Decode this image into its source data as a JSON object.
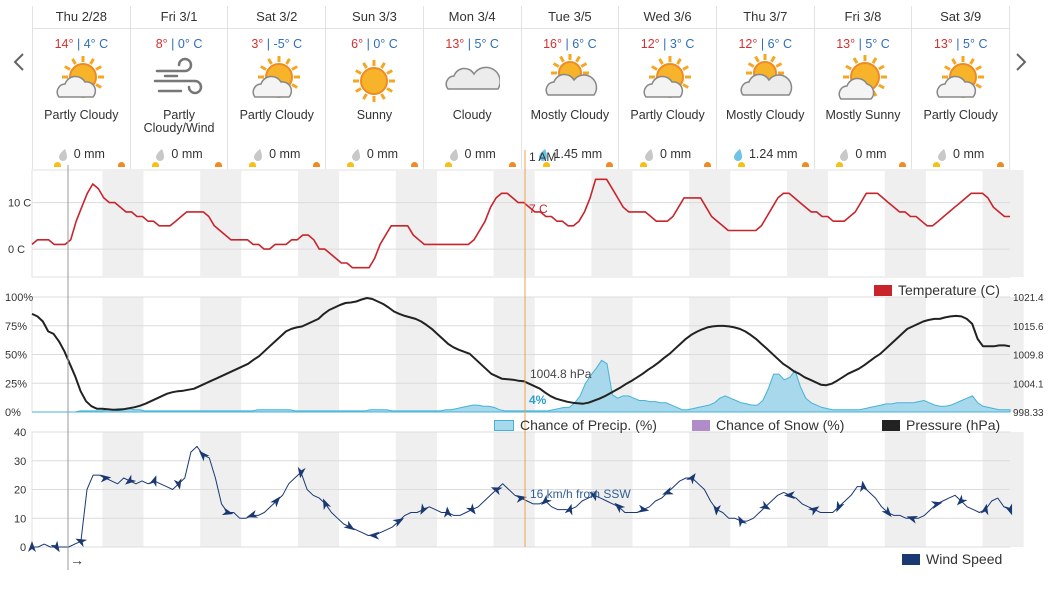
{
  "nav": {
    "prev_label": "‹",
    "next_label": "›"
  },
  "days": [
    {
      "name": "Thu 2/28",
      "hi": "14°",
      "lo": "4° C",
      "icon": "partly-cloudy-icon",
      "condition": "Partly Cloudy",
      "precip": "0 mm",
      "drop": "gray"
    },
    {
      "name": "Fri 3/1",
      "hi": "8°",
      "lo": "0° C",
      "icon": "wind-icon",
      "condition": "Partly Cloudy/Wind",
      "precip": "0 mm",
      "drop": "gray"
    },
    {
      "name": "Sat 3/2",
      "hi": "3°",
      "lo": "-5° C",
      "icon": "partly-cloudy-icon",
      "condition": "Partly Cloudy",
      "precip": "0 mm",
      "drop": "gray"
    },
    {
      "name": "Sun 3/3",
      "hi": "6°",
      "lo": "0° C",
      "icon": "sunny-icon",
      "condition": "Sunny",
      "precip": "0 mm",
      "drop": "gray"
    },
    {
      "name": "Mon 3/4",
      "hi": "13°",
      "lo": "5° C",
      "icon": "cloudy-icon",
      "condition": "Cloudy",
      "precip": "0 mm",
      "drop": "gray"
    },
    {
      "name": "Tue 3/5",
      "hi": "16°",
      "lo": "6° C",
      "icon": "mostly-cloudy-icon",
      "condition": "Mostly Cloudy",
      "precip": "1.45 mm",
      "drop": "blue"
    },
    {
      "name": "Wed 3/6",
      "hi": "12°",
      "lo": "3° C",
      "icon": "partly-cloudy-icon",
      "condition": "Partly Cloudy",
      "precip": "0 mm",
      "drop": "gray"
    },
    {
      "name": "Thu 3/7",
      "hi": "12°",
      "lo": "6° C",
      "icon": "mostly-cloudy-icon",
      "condition": "Mostly Cloudy",
      "precip": "1.24 mm",
      "drop": "blue"
    },
    {
      "name": "Fri 3/8",
      "hi": "13°",
      "lo": "5° C",
      "icon": "mostly-sunny-icon",
      "condition": "Mostly Sunny",
      "precip": "0 mm",
      "drop": "gray"
    },
    {
      "name": "Sat 3/9",
      "hi": "13°",
      "lo": "5° C",
      "icon": "partly-cloudy-icon",
      "condition": "Partly Cloudy",
      "precip": "0 mm",
      "drop": "gray"
    }
  ],
  "colors": {
    "temperature": "#c8242c",
    "precip_fill": "#a8d8ec",
    "precip_line": "#45b3d8",
    "snow": "#b08cc8",
    "pressure": "#222222",
    "wind": "#1a3872",
    "cursor": "#f0a050",
    "night": "#efefef"
  },
  "cursor": {
    "time_label": "1 AM",
    "temp_label": "7 C",
    "pressure_label": "1004.8 hPa",
    "precip_label": "4%",
    "wind_label": "16 km/h from SSW"
  },
  "legends": {
    "temperature": "Temperature (C)",
    "precip": "Chance of Precip. (%)",
    "snow": "Chance of Snow (%)",
    "pressure": "Pressure (hPa)",
    "wind": "Wind Speed"
  },
  "wind_arrow_label": "→",
  "chart_data": [
    {
      "type": "line",
      "name": "temperature",
      "yticks": [
        "10 C",
        "0 C"
      ],
      "ylim": [
        -6,
        17
      ],
      "y": [
        1,
        2,
        2,
        2,
        1,
        1,
        1,
        2,
        6,
        9,
        12,
        14,
        13,
        11,
        10,
        10,
        9,
        8,
        8,
        7,
        7,
        6,
        6,
        5,
        5,
        5,
        6,
        7,
        8,
        8,
        8,
        8,
        7,
        5,
        4,
        3,
        2,
        2,
        2,
        2,
        1,
        1,
        0,
        0,
        1,
        1,
        1,
        2,
        2,
        3,
        3,
        2,
        0,
        0,
        -1,
        -2,
        -3,
        -3,
        -4,
        -4,
        -4,
        -4,
        -2,
        1,
        3,
        5,
        5,
        5,
        5,
        3,
        2,
        1,
        1,
        1,
        1,
        1,
        1,
        1,
        1,
        1,
        2,
        4,
        6,
        9,
        11,
        12,
        12,
        11,
        10,
        10,
        9,
        8,
        8,
        7,
        7,
        6,
        6,
        5,
        5,
        6,
        8,
        11,
        15,
        15,
        15,
        13,
        11,
        9,
        8,
        8,
        8,
        8,
        7,
        6,
        6,
        6,
        7,
        9,
        11,
        11,
        11,
        11,
        9,
        7,
        6,
        5,
        4,
        4,
        4,
        4,
        4,
        4,
        5,
        7,
        9,
        11,
        12,
        12,
        11,
        10,
        9,
        8,
        8,
        7,
        7,
        6,
        6,
        6,
        7,
        8,
        10,
        12,
        12,
        12,
        11,
        10,
        9,
        8,
        8,
        7,
        7,
        6,
        5,
        5,
        6,
        7,
        8,
        9,
        10,
        11,
        12,
        12,
        12,
        11,
        9,
        8,
        7,
        7
      ]
    },
    {
      "type": "area",
      "name": "chance_of_precip",
      "yticks": [
        "100%",
        "75%",
        "50%",
        "25%",
        "0%"
      ],
      "ylim": [
        0,
        100
      ],
      "y": [
        0,
        0,
        0,
        0,
        0,
        0,
        0,
        0,
        0,
        1,
        1,
        1,
        1,
        1,
        2,
        2,
        3,
        3,
        3,
        2,
        2,
        1,
        1,
        1,
        1,
        1,
        1,
        1,
        1,
        1,
        1,
        1,
        1,
        1,
        1,
        1,
        1,
        1,
        1,
        1,
        1,
        1,
        2,
        2,
        2,
        2,
        2,
        2,
        2,
        1,
        1,
        1,
        1,
        1,
        1,
        1,
        1,
        1,
        1,
        1,
        1,
        1,
        1,
        2,
        2,
        2,
        2,
        1,
        1,
        1,
        1,
        1,
        1,
        1,
        1,
        1,
        1,
        2,
        2,
        3,
        4,
        5,
        6,
        6,
        5,
        5,
        4,
        2,
        1,
        1,
        1,
        1,
        1,
        1,
        1,
        1,
        1,
        2,
        3,
        4,
        4,
        8,
        14,
        25,
        32,
        38,
        45,
        42,
        15,
        12,
        14,
        14,
        12,
        10,
        10,
        9,
        9,
        8,
        8,
        6,
        4,
        2,
        2,
        3,
        4,
        5,
        6,
        8,
        12,
        14,
        12,
        10,
        8,
        7,
        6,
        6,
        10,
        20,
        33,
        33,
        28,
        30,
        36,
        22,
        12,
        8,
        6,
        4,
        3,
        2,
        2,
        2,
        2,
        2,
        2,
        3,
        4,
        5,
        6,
        7,
        7,
        8,
        8,
        8,
        8,
        9,
        10,
        8,
        6,
        5,
        5,
        6,
        8,
        10,
        12,
        14,
        8,
        5,
        4,
        3,
        2,
        2,
        2
      ]
    },
    {
      "type": "line",
      "name": "pressure",
      "yticks": [
        "1021.4",
        "1015.6",
        "1009.8",
        "1004.1",
        "998.33"
      ],
      "ylim": [
        998.33,
        1021.4
      ],
      "y": [
        1018,
        1017.5,
        1016.5,
        1014.5,
        1014,
        1012.5,
        1010.5,
        1008,
        1005.5,
        1002.5,
        1000.5,
        999.5,
        999,
        999,
        998.9,
        998.8,
        998.8,
        998.9,
        999.1,
        999.3,
        999.6,
        1000,
        1000.5,
        1001,
        1001.5,
        1002,
        1002.3,
        1002.5,
        1002.6,
        1002.8,
        1003,
        1003.5,
        1004,
        1004.5,
        1005,
        1005.5,
        1006,
        1006.5,
        1007,
        1007.5,
        1008,
        1008.8,
        1009.5,
        1010.5,
        1011.5,
        1012.5,
        1013.5,
        1014.5,
        1015,
        1015.3,
        1015.5,
        1016,
        1016.5,
        1017,
        1018,
        1018.8,
        1019.3,
        1019.8,
        1020.2,
        1020.3,
        1020.5,
        1020.9,
        1021.2,
        1021,
        1020.5,
        1020,
        1019.3,
        1018.5,
        1018,
        1017.6,
        1017.3,
        1017,
        1016.5,
        1015.8,
        1015,
        1014,
        1013,
        1012,
        1011.3,
        1010.8,
        1010.4,
        1010,
        1009,
        1008,
        1007,
        1006,
        1005.5,
        1005,
        1004.9,
        1004.8,
        1004.6,
        1004.5,
        1004,
        1003.5,
        1003,
        1002.2,
        1001.5,
        1001,
        1000.7,
        1000.4,
        1000.2,
        1000.1,
        1000,
        1000.2,
        1000.6,
        1001,
        1001.5,
        1002.1,
        1002.7,
        1003.3,
        1004,
        1004.6,
        1005.3,
        1006,
        1006.8,
        1007.5,
        1008.3,
        1009.2,
        1010,
        1011,
        1012,
        1013,
        1013.8,
        1014.4,
        1014.9,
        1015.3,
        1015.5,
        1015.6,
        1015.6,
        1015.5,
        1015.3,
        1015,
        1014.5,
        1013.8,
        1013,
        1012,
        1011,
        1010,
        1009,
        1008,
        1007.3,
        1006.5,
        1006,
        1005.3,
        1004.8,
        1004.3,
        1003.8,
        1003.7,
        1004,
        1004.6,
        1005.3,
        1006,
        1006.5,
        1007,
        1007.7,
        1008.5,
        1009.3,
        1010,
        1011,
        1012,
        1013,
        1014,
        1015,
        1015.5,
        1016,
        1016.5,
        1016.8,
        1017,
        1017,
        1017.3,
        1017.5,
        1017.6,
        1017.5,
        1017,
        1016,
        1013,
        1011.5,
        1011.5,
        1011.5,
        1011.7,
        1011.7,
        1011.5
      ]
    },
    {
      "type": "line",
      "name": "wind_speed",
      "yticks": [
        "40",
        "30",
        "20",
        "10",
        "0"
      ],
      "ylim": [
        0,
        40
      ],
      "y": [
        0,
        0,
        1,
        0,
        0,
        0,
        0,
        1,
        2,
        20,
        25,
        25,
        24,
        23,
        22,
        24,
        23,
        22,
        23,
        22,
        23,
        22,
        21,
        20,
        22,
        24,
        33,
        35,
        32,
        31,
        24,
        15,
        12,
        12,
        10,
        10,
        11,
        11,
        12,
        14,
        16,
        18,
        22,
        24,
        26,
        20,
        18,
        17,
        15,
        12,
        10,
        8,
        7,
        6,
        5,
        4,
        4,
        5,
        6,
        7,
        9,
        11,
        12,
        12,
        13,
        14,
        13,
        12,
        12,
        11,
        11,
        12,
        13,
        14,
        16,
        18,
        20,
        22,
        20,
        18,
        17,
        16,
        15,
        15,
        16,
        14,
        13,
        13,
        13,
        14,
        16,
        17,
        18,
        17,
        16,
        15,
        14,
        12,
        12,
        12,
        13,
        14,
        16,
        17,
        19,
        21,
        23,
        24,
        24,
        22,
        20,
        16,
        13,
        12,
        10,
        10,
        9,
        9,
        10,
        12,
        14,
        16,
        18,
        19,
        18,
        17,
        15,
        14,
        13,
        12,
        12,
        12,
        14,
        16,
        18,
        21,
        21,
        19,
        17,
        14,
        12,
        11,
        11,
        10,
        10,
        10,
        11,
        13,
        15,
        16,
        17,
        18,
        16,
        14,
        13,
        12,
        13,
        16,
        17,
        14,
        13
      ]
    }
  ]
}
